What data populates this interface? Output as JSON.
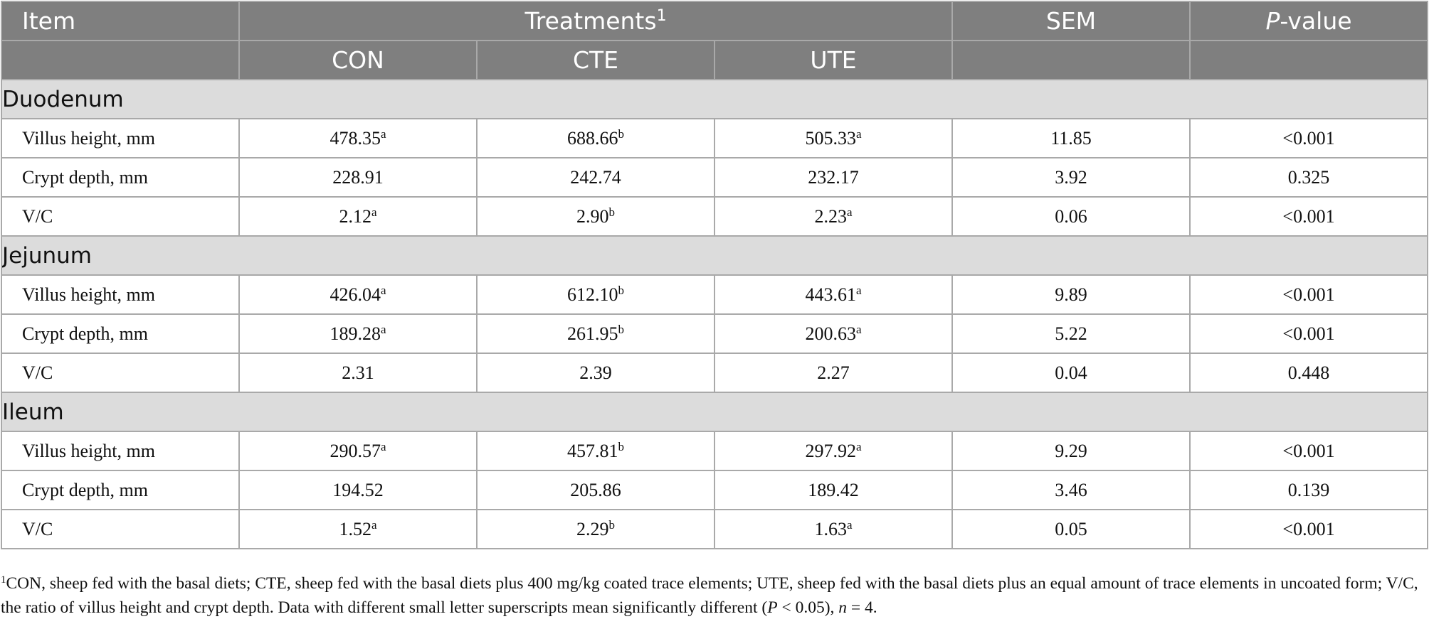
{
  "header": {
    "item": "Item",
    "treatments": "Treatments",
    "treatments_note": "1",
    "sem": "SEM",
    "pvalue_italic": "P",
    "pvalue_rest": "-value",
    "sub": [
      "CON",
      "CTE",
      "UTE"
    ]
  },
  "sections": [
    {
      "name": "Duodenum",
      "rows": [
        {
          "item": "Villus height, mm",
          "con": "478.35",
          "con_sup": "a",
          "cte": "688.66",
          "cte_sup": "b",
          "ute": "505.33",
          "ute_sup": "a",
          "sem": "11.85",
          "p": "<0.001"
        },
        {
          "item": "Crypt depth, mm",
          "con": "228.91",
          "con_sup": "",
          "cte": "242.74",
          "cte_sup": "",
          "ute": "232.17",
          "ute_sup": "",
          "sem": "3.92",
          "p": "0.325"
        },
        {
          "item": "V/C",
          "con": "2.12",
          "con_sup": "a",
          "cte": "2.90",
          "cte_sup": "b",
          "ute": "2.23",
          "ute_sup": "a",
          "sem": "0.06",
          "p": "<0.001"
        }
      ]
    },
    {
      "name": "Jejunum",
      "rows": [
        {
          "item": "Villus height, mm",
          "con": "426.04",
          "con_sup": "a",
          "cte": "612.10",
          "cte_sup": "b",
          "ute": "443.61",
          "ute_sup": "a",
          "sem": "9.89",
          "p": "<0.001"
        },
        {
          "item": "Crypt depth, mm",
          "con": "189.28",
          "con_sup": "a",
          "cte": "261.95",
          "cte_sup": "b",
          "ute": "200.63",
          "ute_sup": "a",
          "sem": "5.22",
          "p": "<0.001"
        },
        {
          "item": "V/C",
          "con": "2.31",
          "con_sup": "",
          "cte": "2.39",
          "cte_sup": "",
          "ute": "2.27",
          "ute_sup": "",
          "sem": "0.04",
          "p": "0.448"
        }
      ]
    },
    {
      "name": "Ileum",
      "rows": [
        {
          "item": "Villus height, mm",
          "con": "290.57",
          "con_sup": "a",
          "cte": "457.81",
          "cte_sup": "b",
          "ute": "297.92",
          "ute_sup": "a",
          "sem": "9.29",
          "p": "<0.001"
        },
        {
          "item": "Crypt depth, mm",
          "con": "194.52",
          "con_sup": "",
          "cte": "205.86",
          "cte_sup": "",
          "ute": "189.42",
          "ute_sup": "",
          "sem": "3.46",
          "p": "0.139"
        },
        {
          "item": "V/C",
          "con": "1.52",
          "con_sup": "a",
          "cte": "2.29",
          "cte_sup": "b",
          "ute": "1.63",
          "ute_sup": "a",
          "sem": "0.05",
          "p": "<0.001"
        }
      ]
    }
  ],
  "footnote": {
    "mark": "1",
    "part1": "CON, sheep fed with the basal diets; CTE, sheep fed with the basal diets plus 400 mg/kg coated trace elements; UTE, sheep fed with the basal diets plus an equal amount of trace elements in uncoated form; V/C, the ratio of villus height and crypt depth. Data with different small letter superscripts mean significantly different (",
    "p_italic": "P",
    "part2": " < 0.05), ",
    "n_italic": "n",
    "part3": " = 4."
  },
  "colors": {
    "header_bg": "#7f7f7f",
    "section_bg": "#dcdcdc",
    "border": "#a9a9a9"
  }
}
